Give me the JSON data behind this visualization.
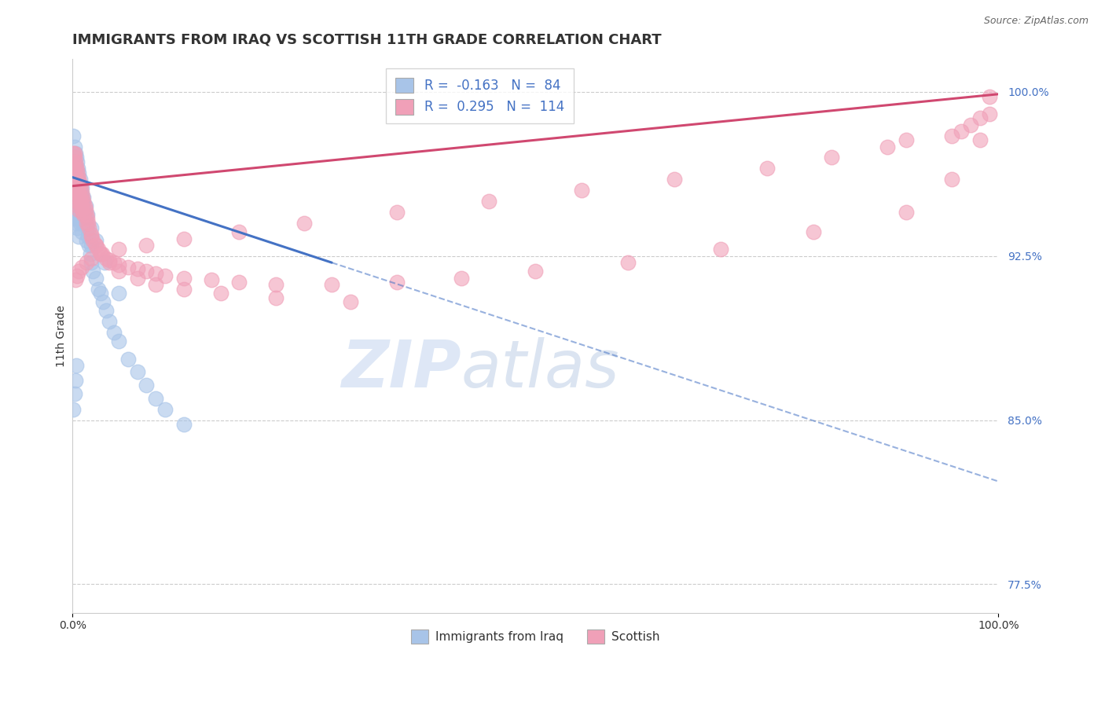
{
  "title": "IMMIGRANTS FROM IRAQ VS SCOTTISH 11TH GRADE CORRELATION CHART",
  "source": "Source: ZipAtlas.com",
  "ylabel": "11th Grade",
  "right_yticks": [
    0.775,
    0.85,
    0.925,
    1.0
  ],
  "right_ytick_labels": [
    "77.5%",
    "85.0%",
    "92.5%",
    "100.0%"
  ],
  "legend_iraq_label": "Immigrants from Iraq",
  "legend_scottish_label": "Scottish",
  "iraq_R": "-0.163",
  "iraq_N": "84",
  "scottish_R": "0.295",
  "scottish_N": "114",
  "iraq_color": "#a8c4e8",
  "scottish_color": "#f0a0b8",
  "iraq_trend_color": "#4472c4",
  "scottish_trend_color": "#d04870",
  "text_color": "#333333",
  "legend_value_color": "#4472c4",
  "grid_color": "#cccccc",
  "xlim": [
    0.0,
    1.0
  ],
  "ylim": [
    0.762,
    1.015
  ],
  "iraq_trend_start_x": 0.0,
  "iraq_trend_start_y": 0.961,
  "iraq_trend_solid_end_x": 0.28,
  "iraq_trend_solid_end_y": 0.922,
  "iraq_trend_dash_end_x": 1.0,
  "iraq_trend_dash_end_y": 0.822,
  "scottish_trend_start_x": 0.0,
  "scottish_trend_start_y": 0.957,
  "scottish_trend_end_x": 1.0,
  "scottish_trend_end_y": 0.999,
  "iraq_scatter_x": [
    0.001,
    0.001,
    0.001,
    0.001,
    0.002,
    0.002,
    0.002,
    0.002,
    0.003,
    0.003,
    0.003,
    0.003,
    0.004,
    0.004,
    0.004,
    0.004,
    0.005,
    0.005,
    0.005,
    0.005,
    0.006,
    0.006,
    0.006,
    0.007,
    0.007,
    0.007,
    0.007,
    0.008,
    0.008,
    0.008,
    0.009,
    0.009,
    0.01,
    0.01,
    0.01,
    0.011,
    0.011,
    0.012,
    0.012,
    0.013,
    0.014,
    0.015,
    0.015,
    0.016,
    0.017,
    0.018,
    0.019,
    0.02,
    0.02,
    0.022,
    0.025,
    0.028,
    0.03,
    0.033,
    0.036,
    0.04,
    0.045,
    0.05,
    0.06,
    0.07,
    0.08,
    0.09,
    0.1,
    0.12,
    0.001,
    0.002,
    0.003,
    0.004,
    0.005,
    0.006,
    0.007,
    0.008,
    0.01,
    0.012,
    0.014,
    0.016,
    0.02,
    0.025,
    0.035,
    0.05,
    0.001,
    0.002,
    0.003,
    0.004
  ],
  "iraq_scatter_y": [
    0.97,
    0.962,
    0.956,
    0.948,
    0.968,
    0.96,
    0.954,
    0.944,
    0.966,
    0.958,
    0.952,
    0.942,
    0.964,
    0.956,
    0.95,
    0.94,
    0.962,
    0.955,
    0.948,
    0.938,
    0.96,
    0.952,
    0.944,
    0.958,
    0.95,
    0.942,
    0.934,
    0.956,
    0.948,
    0.94,
    0.954,
    0.946,
    0.952,
    0.944,
    0.936,
    0.95,
    0.942,
    0.948,
    0.94,
    0.945,
    0.942,
    0.94,
    0.932,
    0.938,
    0.934,
    0.93,
    0.926,
    0.93,
    0.922,
    0.918,
    0.915,
    0.91,
    0.908,
    0.904,
    0.9,
    0.895,
    0.89,
    0.886,
    0.878,
    0.872,
    0.866,
    0.86,
    0.855,
    0.848,
    0.98,
    0.975,
    0.972,
    0.97,
    0.968,
    0.965,
    0.963,
    0.96,
    0.956,
    0.952,
    0.948,
    0.944,
    0.938,
    0.932,
    0.922,
    0.908,
    0.855,
    0.862,
    0.868,
    0.875
  ],
  "scottish_scatter_x": [
    0.001,
    0.001,
    0.001,
    0.002,
    0.002,
    0.002,
    0.003,
    0.003,
    0.003,
    0.004,
    0.004,
    0.004,
    0.005,
    0.005,
    0.005,
    0.006,
    0.006,
    0.006,
    0.007,
    0.007,
    0.007,
    0.008,
    0.008,
    0.009,
    0.009,
    0.01,
    0.01,
    0.011,
    0.011,
    0.012,
    0.013,
    0.014,
    0.015,
    0.016,
    0.017,
    0.018,
    0.02,
    0.022,
    0.025,
    0.028,
    0.032,
    0.036,
    0.04,
    0.045,
    0.05,
    0.06,
    0.07,
    0.08,
    0.09,
    0.1,
    0.12,
    0.15,
    0.18,
    0.22,
    0.28,
    0.35,
    0.42,
    0.5,
    0.6,
    0.7,
    0.8,
    0.9,
    0.95,
    0.98,
    0.99,
    0.99,
    0.98,
    0.97,
    0.96,
    0.95,
    0.9,
    0.88,
    0.82,
    0.75,
    0.65,
    0.55,
    0.45,
    0.35,
    0.25,
    0.18,
    0.12,
    0.08,
    0.05,
    0.03,
    0.02,
    0.015,
    0.01,
    0.007,
    0.005,
    0.003,
    0.002,
    0.001,
    0.002,
    0.003,
    0.004,
    0.005,
    0.006,
    0.007,
    0.008,
    0.009,
    0.01,
    0.012,
    0.015,
    0.02,
    0.025,
    0.03,
    0.04,
    0.05,
    0.07,
    0.09,
    0.12,
    0.16,
    0.22,
    0.3
  ],
  "scottish_scatter_y": [
    0.972,
    0.965,
    0.958,
    0.97,
    0.963,
    0.956,
    0.968,
    0.961,
    0.954,
    0.966,
    0.959,
    0.952,
    0.964,
    0.957,
    0.95,
    0.962,
    0.955,
    0.948,
    0.96,
    0.953,
    0.946,
    0.958,
    0.951,
    0.956,
    0.949,
    0.954,
    0.947,
    0.952,
    0.945,
    0.95,
    0.948,
    0.946,
    0.944,
    0.942,
    0.94,
    0.938,
    0.934,
    0.932,
    0.93,
    0.928,
    0.926,
    0.924,
    0.923,
    0.922,
    0.921,
    0.92,
    0.919,
    0.918,
    0.917,
    0.916,
    0.915,
    0.914,
    0.913,
    0.912,
    0.912,
    0.913,
    0.915,
    0.918,
    0.922,
    0.928,
    0.936,
    0.945,
    0.96,
    0.978,
    0.998,
    0.99,
    0.988,
    0.985,
    0.982,
    0.98,
    0.978,
    0.975,
    0.97,
    0.965,
    0.96,
    0.955,
    0.95,
    0.945,
    0.94,
    0.936,
    0.933,
    0.93,
    0.928,
    0.926,
    0.924,
    0.922,
    0.92,
    0.918,
    0.916,
    0.914,
    0.972,
    0.968,
    0.965,
    0.962,
    0.96,
    0.958,
    0.956,
    0.954,
    0.952,
    0.95,
    0.948,
    0.944,
    0.94,
    0.935,
    0.93,
    0.926,
    0.922,
    0.918,
    0.915,
    0.912,
    0.91,
    0.908,
    0.906,
    0.904
  ]
}
